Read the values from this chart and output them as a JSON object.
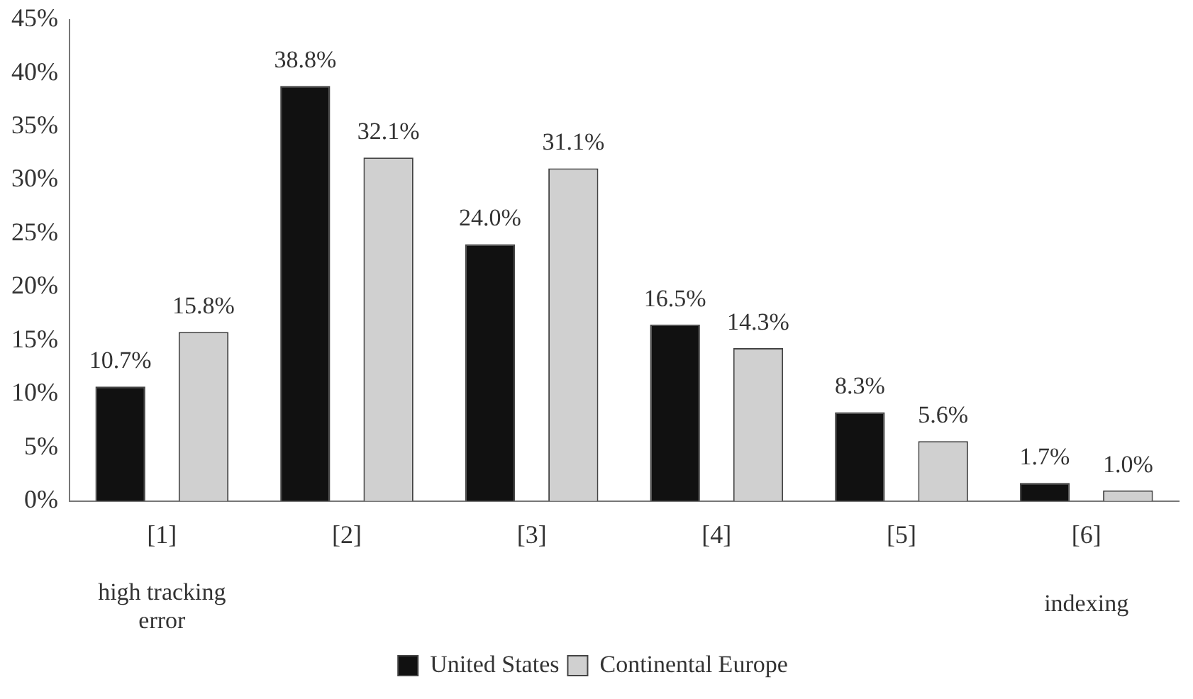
{
  "chart_data": {
    "type": "bar",
    "categories": [
      "[1]",
      "[2]",
      "[3]",
      "[4]",
      "[5]",
      "[6]"
    ],
    "series": [
      {
        "name": "United States",
        "color": "#111111",
        "values": [
          10.7,
          38.8,
          24.0,
          16.5,
          8.3,
          1.7
        ],
        "value_labels": [
          "10.7%",
          "38.8%",
          "24.0%",
          "16.5%",
          "8.3%",
          "1.7%"
        ]
      },
      {
        "name": "Continental Europe",
        "color": "#d0d0d0",
        "values": [
          15.8,
          32.1,
          31.1,
          14.3,
          5.6,
          1.0
        ],
        "value_labels": [
          "15.8%",
          "32.1%",
          "31.1%",
          "14.3%",
          "5.6%",
          "1.0%"
        ]
      }
    ],
    "ylim": [
      0,
      45
    ],
    "yticks": [
      {
        "value": 0,
        "label": "0%"
      },
      {
        "value": 5,
        "label": "5%"
      },
      {
        "value": 10,
        "label": "10%"
      },
      {
        "value": 15,
        "label": "15%"
      },
      {
        "value": 20,
        "label": "20%"
      },
      {
        "value": 25,
        "label": "25%"
      },
      {
        "value": 30,
        "label": "30%"
      },
      {
        "value": 35,
        "label": "35%"
      },
      {
        "value": 40,
        "label": "40%"
      },
      {
        "value": 45,
        "label": "45%"
      }
    ],
    "annotations": [
      "high tracking error",
      "indexing"
    ],
    "grid": false,
    "legend": "bottom"
  }
}
